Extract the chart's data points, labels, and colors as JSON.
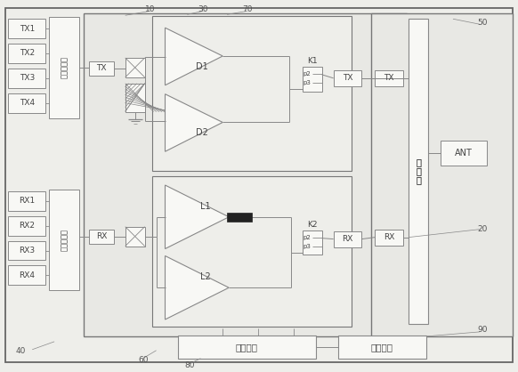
{
  "bg_color": "#eeeeea",
  "inner_bg": "#e8e8e4",
  "line_color": "#888888",
  "box_color": "#f8f8f5",
  "text_color": "#444444",
  "labels": {
    "tx_inputs": [
      "TX1",
      "TX2",
      "TX3",
      "TX4"
    ],
    "rx_inputs": [
      "RX1",
      "RX2",
      "RX3",
      "RX4"
    ],
    "combo1": "第一合路器",
    "combo2": "第二合路器",
    "tx_label": "TX",
    "rx_label": "RX",
    "D1": "D1",
    "D2": "D2",
    "L1": "L1",
    "L2": "L2",
    "K1": "K1",
    "K2": "K2",
    "tx_out": "TX",
    "rx_out": "RX",
    "duplex": "双工器",
    "ant": "ANT",
    "master": "主控单元",
    "power": "电源模块",
    "num_10": "10",
    "num_20": "20",
    "num_30": "30",
    "num_40": "40",
    "num_50": "50",
    "num_60": "60",
    "num_70": "70",
    "num_80": "80",
    "num_90": "90"
  }
}
